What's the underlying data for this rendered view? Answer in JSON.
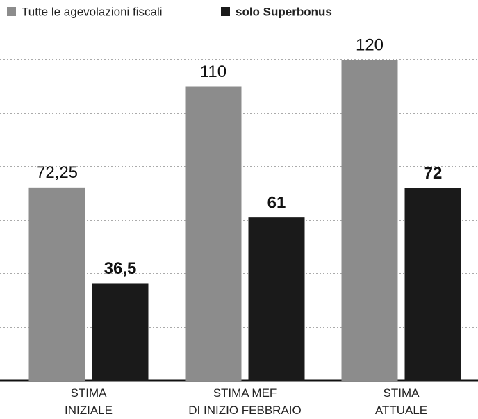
{
  "chart_data": {
    "type": "bar",
    "categories": [
      "STIMA\nINIZIALE",
      "STIMA MEF\nDI INIZIO FEBBRAIO",
      "STIMA\nATTUALE"
    ],
    "series": [
      {
        "name": "Tutte le agevolazioni fiscali",
        "color": "#8c8c8c",
        "values": [
          72.25,
          110,
          120
        ],
        "value_labels": [
          "72,25",
          "110",
          "120"
        ]
      },
      {
        "name": "solo Superbonus",
        "color": "#1a1a1a",
        "values": [
          36.5,
          61,
          72
        ],
        "value_labels": [
          "36,5",
          "61",
          "72"
        ]
      }
    ],
    "ylim": [
      0,
      120
    ],
    "yticks": [
      0,
      20,
      40,
      60,
      80,
      100,
      120
    ],
    "grid": true,
    "legend": "top-left"
  }
}
